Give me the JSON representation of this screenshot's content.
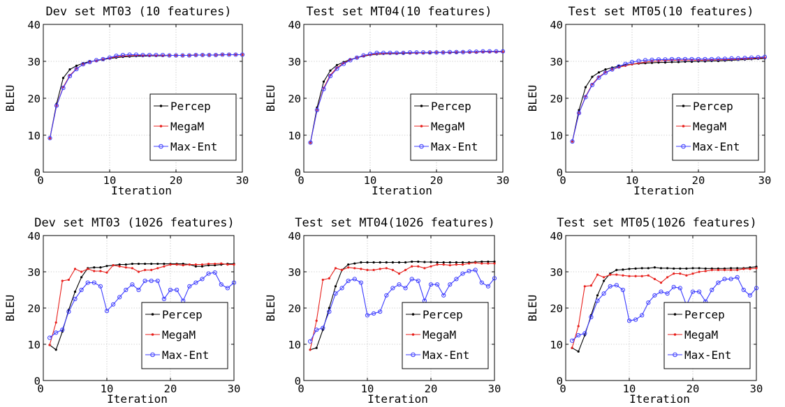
{
  "chart_data": [
    {
      "type": "line",
      "title": "Dev set MT03 (10 features)",
      "xlabel": "Iteration",
      "ylabel": "BLEU",
      "xlim": [
        0,
        30
      ],
      "ylim": [
        0,
        40
      ],
      "xticks": [
        0,
        10,
        20,
        30
      ],
      "yticks": [
        0,
        10,
        20,
        30,
        40
      ],
      "grid": true,
      "legend_position": "lower-right",
      "x": [
        1,
        2,
        3,
        4,
        5,
        6,
        7,
        8,
        9,
        10,
        11,
        12,
        13,
        14,
        15,
        16,
        17,
        18,
        19,
        20,
        21,
        22,
        23,
        24,
        25,
        26,
        27,
        28,
        29,
        30
      ],
      "series": [
        {
          "name": "Percep",
          "color": "#000000",
          "marker": "dot",
          "values": [
            9.2,
            18.5,
            25.5,
            27.8,
            28.8,
            29.5,
            29.9,
            30.2,
            30.5,
            30.8,
            31.0,
            31.2,
            31.3,
            31.4,
            31.4,
            31.5,
            31.5,
            31.5,
            31.6,
            31.6,
            31.6,
            31.6,
            31.7,
            31.7,
            31.7,
            31.7,
            31.8,
            31.8,
            31.8,
            31.8
          ]
        },
        {
          "name": "MegaM",
          "color": "#e8201c",
          "marker": "dot",
          "values": [
            9.2,
            18.0,
            23.0,
            26.2,
            28.0,
            29.2,
            29.8,
            30.2,
            30.6,
            30.9,
            31.2,
            31.4,
            31.5,
            31.6,
            31.6,
            31.6,
            31.6,
            31.6,
            31.6,
            31.6,
            31.6,
            31.6,
            31.7,
            31.7,
            31.7,
            31.7,
            31.8,
            31.8,
            31.8,
            31.8
          ]
        },
        {
          "name": "Max-Ent",
          "color": "#3a3aff",
          "marker": "circle",
          "values": [
            9.2,
            18.0,
            22.8,
            26.0,
            27.9,
            29.2,
            29.8,
            30.3,
            30.6,
            31.0,
            31.5,
            31.7,
            31.8,
            31.8,
            31.7,
            31.7,
            31.7,
            31.7,
            31.6,
            31.6,
            31.6,
            31.6,
            31.7,
            31.7,
            31.7,
            31.7,
            31.8,
            31.8,
            31.8,
            31.8
          ]
        }
      ]
    },
    {
      "type": "line",
      "title": "Test set MT04(10 features)",
      "xlabel": "Iteration",
      "ylabel": "BLEU",
      "xlim": [
        0,
        30
      ],
      "ylim": [
        0,
        40
      ],
      "xticks": [
        0,
        10,
        20,
        30
      ],
      "yticks": [
        0,
        10,
        20,
        30,
        40
      ],
      "grid": true,
      "legend_position": "lower-right",
      "x": [
        1,
        2,
        3,
        4,
        5,
        6,
        7,
        8,
        9,
        10,
        11,
        12,
        13,
        14,
        15,
        16,
        17,
        18,
        19,
        20,
        21,
        22,
        23,
        24,
        25,
        26,
        27,
        28,
        29,
        30
      ],
      "series": [
        {
          "name": "Percep",
          "color": "#000000",
          "marker": "dot",
          "values": [
            8.0,
            17.5,
            24.5,
            27.5,
            29.0,
            29.8,
            30.5,
            31.0,
            31.4,
            31.7,
            31.9,
            32.0,
            32.1,
            32.1,
            32.2,
            32.2,
            32.3,
            32.3,
            32.3,
            32.4,
            32.4,
            32.4,
            32.4,
            32.5,
            32.5,
            32.5,
            32.6,
            32.6,
            32.6,
            32.6
          ]
        },
        {
          "name": "MegaM",
          "color": "#e8201c",
          "marker": "dot",
          "values": [
            8.0,
            16.8,
            22.8,
            26.3,
            28.3,
            29.5,
            30.4,
            31.0,
            31.5,
            31.8,
            32.0,
            32.1,
            32.2,
            32.2,
            32.3,
            32.3,
            32.3,
            32.3,
            32.4,
            32.4,
            32.4,
            32.4,
            32.5,
            32.5,
            32.5,
            32.5,
            32.6,
            32.6,
            32.6,
            32.6
          ]
        },
        {
          "name": "Max-Ent",
          "color": "#3a3aff",
          "marker": "circle",
          "values": [
            8.0,
            16.8,
            22.5,
            26.0,
            28.0,
            29.3,
            30.3,
            31.0,
            31.6,
            32.0,
            32.3,
            32.3,
            32.3,
            32.3,
            32.3,
            32.4,
            32.4,
            32.4,
            32.4,
            32.4,
            32.4,
            32.5,
            32.5,
            32.5,
            32.6,
            32.6,
            32.7,
            32.7,
            32.7,
            32.7
          ]
        }
      ]
    },
    {
      "type": "line",
      "title": "Test set MT05(10 features)",
      "xlabel": "Iteration",
      "ylabel": "BLEU",
      "xlim": [
        0,
        30
      ],
      "ylim": [
        0,
        40
      ],
      "xticks": [
        0,
        10,
        20,
        30
      ],
      "yticks": [
        0,
        10,
        20,
        30,
        40
      ],
      "grid": true,
      "legend_position": "lower-right",
      "x": [
        1,
        2,
        3,
        4,
        5,
        6,
        7,
        8,
        9,
        10,
        11,
        12,
        13,
        14,
        15,
        16,
        17,
        18,
        19,
        20,
        21,
        22,
        23,
        24,
        25,
        26,
        27,
        28,
        29,
        30
      ],
      "series": [
        {
          "name": "Percep",
          "color": "#000000",
          "marker": "dot",
          "values": [
            8.3,
            16.8,
            23.0,
            25.8,
            27.0,
            27.8,
            28.3,
            28.7,
            29.0,
            29.2,
            29.4,
            29.5,
            29.6,
            29.7,
            29.7,
            29.8,
            29.8,
            29.9,
            29.9,
            30.0,
            30.0,
            30.1,
            30.1,
            30.2,
            30.3,
            30.4,
            30.5,
            30.6,
            30.7,
            30.8
          ]
        },
        {
          "name": "MegaM",
          "color": "#e8201c",
          "marker": "dot",
          "values": [
            8.3,
            16.0,
            20.5,
            23.8,
            25.8,
            27.0,
            27.8,
            28.4,
            28.8,
            29.2,
            29.5,
            29.8,
            30.0,
            30.1,
            30.2,
            30.3,
            30.3,
            30.3,
            30.3,
            30.3,
            30.3,
            30.4,
            30.4,
            30.5,
            30.5,
            30.6,
            30.7,
            30.8,
            30.9,
            31.0
          ]
        },
        {
          "name": "Max-Ent",
          "color": "#3a3aff",
          "marker": "circle",
          "values": [
            8.3,
            16.0,
            20.3,
            23.6,
            25.6,
            26.9,
            27.8,
            28.6,
            29.3,
            29.8,
            30.1,
            30.3,
            30.4,
            30.5,
            30.5,
            30.6,
            30.6,
            30.6,
            30.6,
            30.6,
            30.6,
            30.6,
            30.7,
            30.7,
            30.8,
            30.8,
            30.9,
            31.0,
            31.1,
            31.2
          ]
        }
      ]
    },
    {
      "type": "line",
      "title": "Dev set MT03 (1026 features)",
      "xlabel": "Iteration",
      "ylabel": "BLEU",
      "xlim": [
        0,
        30
      ],
      "ylim": [
        0,
        40
      ],
      "xticks": [
        0,
        10,
        20,
        30
      ],
      "yticks": [
        0,
        10,
        20,
        30,
        40
      ],
      "grid": true,
      "legend_position": "lower-right",
      "x": [
        1,
        2,
        3,
        4,
        5,
        6,
        7,
        8,
        9,
        10,
        11,
        12,
        13,
        14,
        15,
        16,
        17,
        18,
        19,
        20,
        21,
        22,
        23,
        24,
        25,
        26,
        27,
        28,
        29,
        30
      ],
      "series": [
        {
          "name": "Percep",
          "color": "#000000",
          "marker": "dot",
          "values": [
            9.8,
            8.5,
            13.5,
            19.5,
            24.5,
            28.5,
            31.0,
            31.2,
            31.2,
            31.6,
            31.8,
            32.0,
            32.0,
            32.2,
            32.2,
            32.2,
            32.2,
            32.2,
            32.2,
            32.2,
            32.2,
            32.2,
            32.0,
            31.5,
            31.5,
            31.8,
            31.8,
            32.0,
            32.2,
            32.2
          ]
        },
        {
          "name": "MegaM",
          "color": "#e8201c",
          "marker": "dot",
          "values": [
            9.8,
            16.0,
            27.5,
            27.8,
            30.8,
            30.0,
            30.8,
            30.2,
            30.2,
            29.8,
            31.8,
            31.5,
            31.2,
            31.0,
            30.0,
            30.5,
            30.5,
            31.0,
            31.5,
            32.0,
            32.0,
            31.8,
            32.0,
            32.0,
            32.0,
            32.2,
            32.2,
            32.3,
            32.0,
            32.0
          ]
        },
        {
          "name": "Max-Ent",
          "color": "#3a3aff",
          "marker": "circle",
          "values": [
            11.8,
            13.2,
            14.0,
            19.0,
            22.5,
            25.0,
            27.0,
            27.0,
            26.0,
            19.2,
            21.0,
            23.0,
            25.0,
            26.5,
            25.0,
            27.5,
            27.5,
            27.5,
            22.5,
            25.0,
            25.0,
            22.0,
            26.0,
            27.0,
            28.0,
            29.5,
            29.8,
            26.5,
            25.5,
            27.0
          ]
        }
      ]
    },
    {
      "type": "line",
      "title": "Test set MT04(1026 features)",
      "xlabel": "Iteration",
      "ylabel": "BLEU",
      "xlim": [
        0,
        30
      ],
      "ylim": [
        0,
        40
      ],
      "xticks": [
        0,
        10,
        20,
        30
      ],
      "yticks": [
        0,
        10,
        20,
        30,
        40
      ],
      "grid": true,
      "legend_position": "lower-right",
      "x": [
        1,
        2,
        3,
        4,
        5,
        6,
        7,
        8,
        9,
        10,
        11,
        12,
        13,
        14,
        15,
        16,
        17,
        18,
        19,
        20,
        21,
        22,
        23,
        24,
        25,
        26,
        27,
        28,
        29,
        30
      ],
      "series": [
        {
          "name": "Percep",
          "color": "#000000",
          "marker": "dot",
          "values": [
            8.5,
            9.0,
            14.0,
            20.0,
            26.0,
            30.5,
            32.0,
            32.3,
            32.6,
            32.6,
            32.6,
            32.6,
            32.6,
            32.6,
            32.6,
            32.6,
            32.8,
            32.8,
            32.7,
            32.7,
            32.6,
            32.6,
            32.6,
            32.6,
            32.6,
            32.6,
            32.7,
            32.8,
            32.8,
            32.8
          ]
        },
        {
          "name": "MegaM",
          "color": "#e8201c",
          "marker": "dot",
          "values": [
            8.5,
            16.5,
            27.8,
            28.2,
            31.0,
            30.5,
            31.2,
            31.0,
            30.8,
            30.5,
            30.5,
            30.8,
            31.0,
            30.5,
            29.5,
            30.5,
            31.5,
            31.5,
            31.0,
            31.5,
            32.0,
            32.0,
            31.8,
            32.0,
            32.0,
            32.3,
            32.5,
            32.3,
            32.3,
            32.3
          ]
        },
        {
          "name": "Max-Ent",
          "color": "#3a3aff",
          "marker": "circle",
          "values": [
            10.8,
            14.0,
            14.5,
            19.0,
            24.0,
            25.5,
            27.5,
            28.0,
            27.0,
            18.0,
            18.5,
            19.0,
            23.5,
            25.5,
            26.5,
            25.5,
            28.0,
            27.5,
            22.0,
            26.5,
            26.5,
            23.5,
            26.5,
            28.0,
            29.5,
            30.2,
            30.5,
            27.0,
            26.0,
            28.2
          ]
        }
      ]
    },
    {
      "type": "line",
      "title": "Test set MT05(1026 features)",
      "xlabel": "Iteration",
      "ylabel": "BLEU",
      "xlim": [
        0,
        30
      ],
      "ylim": [
        0,
        40
      ],
      "xticks": [
        0,
        10,
        20,
        30
      ],
      "yticks": [
        0,
        10,
        20,
        30,
        40
      ],
      "grid": true,
      "legend_position": "lower-right",
      "x": [
        1,
        2,
        3,
        4,
        5,
        6,
        7,
        8,
        9,
        10,
        11,
        12,
        13,
        14,
        15,
        16,
        17,
        18,
        19,
        20,
        21,
        22,
        23,
        24,
        25,
        26,
        27,
        28,
        29,
        30
      ],
      "series": [
        {
          "name": "Percep",
          "color": "#000000",
          "marker": "dot",
          "values": [
            9.0,
            8.0,
            12.5,
            18.0,
            23.5,
            27.5,
            29.5,
            30.5,
            30.6,
            30.8,
            30.9,
            31.0,
            31.0,
            31.2,
            31.0,
            31.0,
            30.9,
            30.9,
            30.9,
            31.0,
            31.0,
            30.9,
            30.9,
            30.9,
            30.9,
            31.0,
            31.0,
            31.0,
            31.2,
            31.4
          ]
        },
        {
          "name": "MegaM",
          "color": "#e8201c",
          "marker": "dot",
          "values": [
            9.0,
            15.0,
            26.0,
            26.2,
            29.2,
            28.5,
            29.2,
            29.2,
            29.0,
            28.8,
            28.8,
            28.8,
            29.0,
            28.0,
            27.0,
            28.5,
            29.5,
            29.5,
            29.0,
            29.5,
            30.0,
            30.2,
            30.5,
            30.5,
            30.5,
            30.5,
            30.5,
            30.8,
            30.8,
            31.0
          ]
        },
        {
          "name": "Max-Ent",
          "color": "#3a3aff",
          "marker": "circle",
          "values": [
            11.0,
            12.5,
            13.0,
            17.5,
            22.0,
            24.0,
            26.0,
            26.3,
            25.0,
            16.5,
            16.8,
            18.0,
            21.5,
            23.5,
            24.5,
            24.0,
            25.8,
            25.5,
            20.8,
            24.5,
            24.5,
            21.8,
            25.0,
            27.0,
            28.0,
            28.0,
            28.5,
            25.0,
            23.5,
            25.5
          ]
        }
      ]
    }
  ]
}
